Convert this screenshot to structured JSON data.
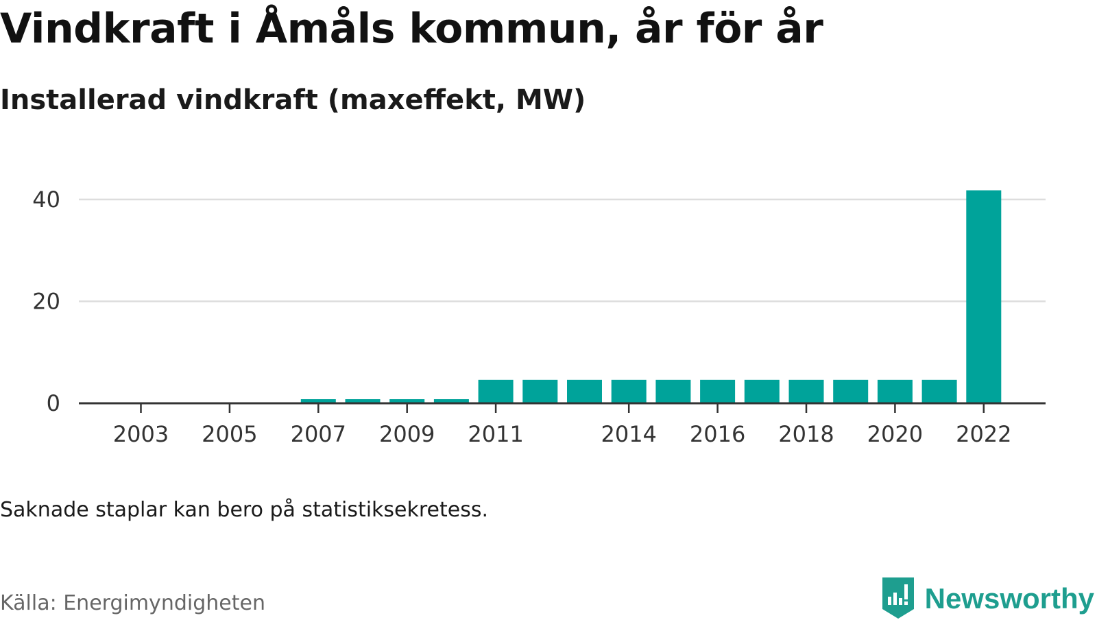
{
  "header": {
    "title": "Vindkraft i Åmåls kommun, år för år",
    "subtitle": "Installerad vindkraft (maxeffekt, MW)"
  },
  "footer": {
    "note": "Saknade staplar kan bero på statistiksekretess.",
    "source": "Källa: Energimyndigheten",
    "brand": "Newsworthy"
  },
  "colors": {
    "bar": "#00a39a",
    "grid": "#dddddd",
    "axis": "#333333",
    "brand": "#1e9e8f"
  },
  "chart_data": {
    "type": "bar",
    "title": "Vindkraft i Åmåls kommun, år för år",
    "subtitle": "Installerad vindkraft (maxeffekt, MW)",
    "categories": [
      "2003",
      "2004",
      "2005",
      "2006",
      "2007",
      "2008",
      "2009",
      "2010",
      "2011",
      "2012",
      "2013",
      "2014",
      "2015",
      "2016",
      "2017",
      "2018",
      "2019",
      "2020",
      "2021",
      "2022"
    ],
    "values": [
      null,
      null,
      null,
      null,
      0.8,
      0.8,
      0.8,
      0.8,
      4.6,
      4.6,
      4.6,
      4.6,
      4.6,
      4.6,
      4.6,
      4.6,
      4.6,
      4.6,
      4.6,
      41.8
    ],
    "x_tick_labels": [
      "2003",
      "2005",
      "2007",
      "2009",
      "2011",
      "2014",
      "2016",
      "2018",
      "2020",
      "2022"
    ],
    "y_ticks": [
      0,
      20,
      40
    ],
    "ylim": [
      0,
      42
    ],
    "xlabel": "",
    "ylabel": "",
    "grid": "horizontal",
    "legend": "none"
  }
}
